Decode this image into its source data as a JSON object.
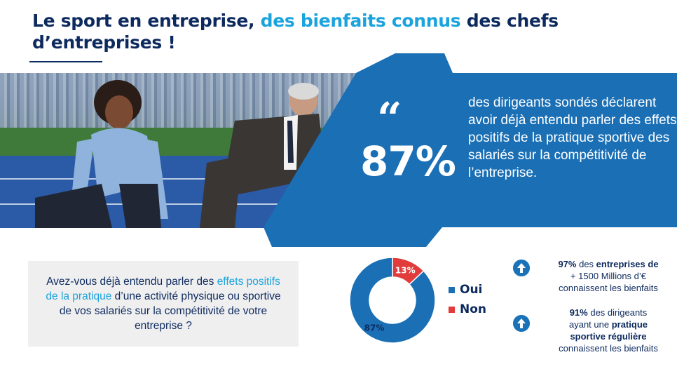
{
  "title": {
    "part1": "Le sport en entreprise, ",
    "part2": "des bienfaits connus",
    "part3": " des chefs d’entreprises !"
  },
  "colors": {
    "navy": "#0d2a5e",
    "accent": "#1aa3dd",
    "blue": "#1a6fb5",
    "red": "#e23b3b",
    "box_bg": "#efeff0"
  },
  "highlight": {
    "quote_mark": "“",
    "percent": "87%",
    "text": "des dirigeants sondés déclarent avoir déjà entendu parler des effets positifs de la pratique sportive des salariés sur la compétitivité de l’entreprise."
  },
  "question": {
    "part1": "Avez-vous déjà entendu parler des ",
    "part2": "effets positifs de la pratique",
    "part3": " d’une activité physique ou sportive de vos salariés sur la compétitivité de votre entreprise ?"
  },
  "chart_data": {
    "type": "pie",
    "donut": true,
    "categories": [
      "Oui",
      "Non"
    ],
    "values": [
      87,
      13
    ],
    "labels": [
      "87%",
      "13%"
    ],
    "colors": [
      "#1a6fb5",
      "#e23b3b"
    ],
    "legend": "right"
  },
  "facts": [
    {
      "icon": "arrow-up-icon",
      "pct": "97%",
      "l1a": " des ",
      "l1b": "entreprises de",
      "l2": "+ 1500 Millions d’€",
      "l3": "connaissent les bienfaits"
    },
    {
      "icon": "arrow-up-icon",
      "pct": "91%",
      "l1a": " des dirigeants",
      "l2a": "ayant une ",
      "l2b": "pratique",
      "l3": "sportive régulière",
      "l4": "connaissent les bienfaits"
    }
  ]
}
